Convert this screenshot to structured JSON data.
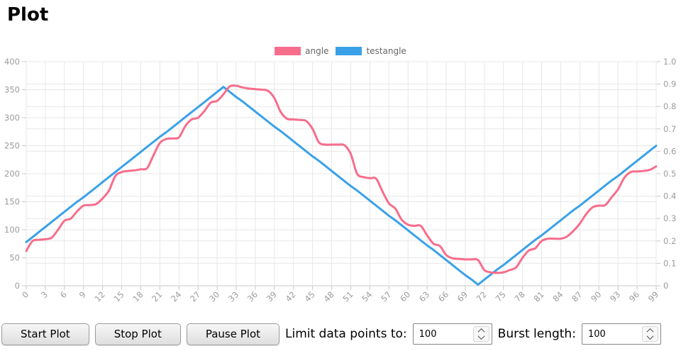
{
  "title": "Plot",
  "legend": {
    "items": [
      {
        "label": "angle",
        "color": "#f76d8c"
      },
      {
        "label": "testangle",
        "color": "#3aa1e8"
      }
    ]
  },
  "controls": {
    "start_label": "Start Plot",
    "stop_label": "Stop Plot",
    "pause_label": "Pause Plot",
    "limit_label": "Limit data points to:",
    "limit_value": "100",
    "burst_label": "Burst length:",
    "burst_value": "100"
  },
  "chart_data": {
    "type": "line",
    "title": "",
    "xlabel": "",
    "ylabel": "",
    "grid": true,
    "legend_position": "top",
    "x_range": [
      0,
      99
    ],
    "x_tick_labels": [
      "0",
      "3",
      "6",
      "9",
      "12",
      "15",
      "18",
      "21",
      "24",
      "27",
      "30",
      "33",
      "36",
      "39",
      "42",
      "45",
      "48",
      "51",
      "54",
      "57",
      "60",
      "63",
      "66",
      "69",
      "72",
      "75",
      "78",
      "81",
      "84",
      "87",
      "90",
      "93",
      "96",
      "99"
    ],
    "left_axis": {
      "min": 0,
      "max": 400,
      "tick_step": 50,
      "ticks": [
        "400",
        "350",
        "300",
        "250",
        "200",
        "150",
        "100",
        "50",
        "0"
      ]
    },
    "right_axis": {
      "min": 0,
      "max": 1,
      "tick_step": 0.1,
      "ticks": [
        "1.0",
        "0.9",
        "0.8",
        "0.7",
        "0.6",
        "0.5",
        "0.4",
        "0.3",
        "0.2",
        "0.1",
        "0"
      ]
    },
    "series": [
      {
        "name": "angle",
        "color": "#f76d8c",
        "yaxis": "left",
        "smooth": true,
        "values": [
          62,
          80,
          82,
          83,
          86,
          100,
          116,
          120,
          133,
          143,
          144,
          146,
          156,
          170,
          196,
          203,
          205,
          206,
          208,
          210,
          233,
          255,
          262,
          263,
          265,
          285,
          297,
          300,
          312,
          327,
          330,
          342,
          356,
          357,
          354,
          352,
          351,
          350,
          348,
          335,
          310,
          298,
          297,
          296,
          294,
          280,
          256,
          252,
          252,
          252,
          251,
          235,
          200,
          194,
          192,
          191,
          168,
          147,
          138,
          118,
          109,
          107,
          107,
          90,
          75,
          71,
          55,
          49,
          48,
          47,
          47,
          46,
          28,
          24,
          23,
          24,
          28,
          33,
          50,
          63,
          67,
          80,
          84,
          84,
          84,
          88,
          98,
          111,
          128,
          140,
          143,
          144,
          158,
          172,
          193,
          203,
          204,
          205,
          207,
          213
        ]
      },
      {
        "name": "testangle",
        "color": "#3aa1e8",
        "yaxis": "left",
        "smooth": false,
        "values": [
          78,
          87,
          96,
          105,
          114,
          123,
          132,
          141,
          150,
          158,
          167,
          176,
          185,
          194,
          203,
          212,
          221,
          230,
          239,
          248,
          257,
          266,
          274,
          283,
          292,
          301,
          310,
          319,
          328,
          337,
          346,
          355,
          346,
          337,
          329,
          320,
          311,
          302,
          293,
          284,
          276,
          267,
          258,
          249,
          240,
          231,
          223,
          214,
          205,
          196,
          187,
          178,
          170,
          161,
          152,
          143,
          134,
          125,
          117,
          108,
          99,
          90,
          81,
          72,
          64,
          55,
          46,
          37,
          28,
          19,
          11,
          2,
          11,
          20,
          29,
          37,
          46,
          55,
          64,
          73,
          82,
          90,
          99,
          108,
          117,
          126,
          135,
          143,
          152,
          161,
          170,
          179,
          188,
          196,
          205,
          214,
          223,
          232,
          241,
          250
        ]
      }
    ]
  }
}
